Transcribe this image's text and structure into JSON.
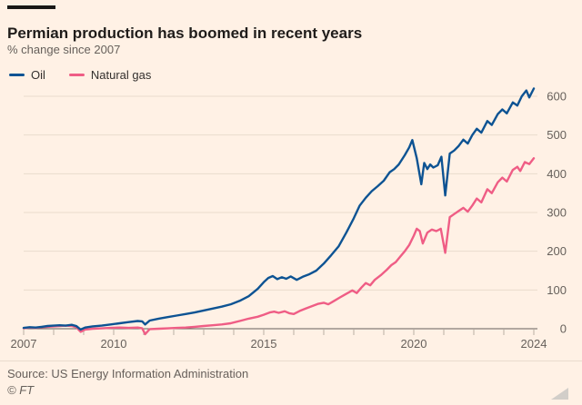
{
  "header": {
    "title": "Permian production has boomed in recent years",
    "subtitle": "% change since 2007"
  },
  "legend": [
    {
      "label": "Oil",
      "color": "#0d5393"
    },
    {
      "label": "Natural gas",
      "color": "#ef5d85"
    }
  ],
  "footer": {
    "source": "Source: US Energy Information Administration",
    "copyright": "© FT"
  },
  "colors": {
    "background": "#fff1e5",
    "grid": "#e9dccd",
    "zero_axis": "#66605b",
    "tick": "#b9aea3",
    "axis_label": "#66605b",
    "oil": "#0d5393",
    "natural_gas": "#ef5d85"
  },
  "chart_data": {
    "type": "line",
    "title": "Permian production has boomed in recent years",
    "ylabel": "% change since 2007",
    "grid": true,
    "legend_position": "top-left",
    "x_axis": {
      "min": 2007,
      "max": 2024.1,
      "tick_step_years": 1,
      "labeled_years": [
        2007,
        2010,
        2015,
        2020,
        2024
      ]
    },
    "y_axis": {
      "side": "right",
      "gridlines": [
        0,
        100,
        200,
        300,
        400,
        500,
        600
      ],
      "ylim": [
        -20,
        640
      ]
    },
    "series": [
      {
        "name": "Oil",
        "color": "#0d5393",
        "points": [
          [
            2007.0,
            2
          ],
          [
            2007.2,
            4
          ],
          [
            2007.4,
            3
          ],
          [
            2007.6,
            5
          ],
          [
            2007.8,
            7
          ],
          [
            2008.0,
            8
          ],
          [
            2008.2,
            9
          ],
          [
            2008.4,
            8
          ],
          [
            2008.6,
            10
          ],
          [
            2008.75,
            7
          ],
          [
            2008.9,
            -2
          ],
          [
            2009.05,
            3
          ],
          [
            2009.3,
            6
          ],
          [
            2009.6,
            8
          ],
          [
            2009.9,
            11
          ],
          [
            2010.2,
            14
          ],
          [
            2010.5,
            17
          ],
          [
            2010.8,
            20
          ],
          [
            2010.95,
            19
          ],
          [
            2011.05,
            11
          ],
          [
            2011.2,
            21
          ],
          [
            2011.5,
            26
          ],
          [
            2011.8,
            30
          ],
          [
            2012.1,
            34
          ],
          [
            2012.4,
            38
          ],
          [
            2012.7,
            42
          ],
          [
            2013.0,
            47
          ],
          [
            2013.3,
            52
          ],
          [
            2013.6,
            57
          ],
          [
            2013.9,
            63
          ],
          [
            2014.2,
            72
          ],
          [
            2014.5,
            84
          ],
          [
            2014.8,
            103
          ],
          [
            2015.0,
            120
          ],
          [
            2015.15,
            131
          ],
          [
            2015.3,
            136
          ],
          [
            2015.45,
            128
          ],
          [
            2015.6,
            133
          ],
          [
            2015.75,
            129
          ],
          [
            2015.9,
            135
          ],
          [
            2016.1,
            126
          ],
          [
            2016.3,
            134
          ],
          [
            2016.5,
            140
          ],
          [
            2016.75,
            150
          ],
          [
            2017.0,
            168
          ],
          [
            2017.25,
            190
          ],
          [
            2017.5,
            213
          ],
          [
            2017.75,
            248
          ],
          [
            2018.0,
            285
          ],
          [
            2018.2,
            318
          ],
          [
            2018.4,
            338
          ],
          [
            2018.6,
            355
          ],
          [
            2018.8,
            368
          ],
          [
            2019.0,
            382
          ],
          [
            2019.2,
            404
          ],
          [
            2019.35,
            412
          ],
          [
            2019.5,
            424
          ],
          [
            2019.7,
            448
          ],
          [
            2019.85,
            468
          ],
          [
            2019.95,
            487
          ],
          [
            2020.1,
            440
          ],
          [
            2020.25,
            373
          ],
          [
            2020.35,
            428
          ],
          [
            2020.45,
            412
          ],
          [
            2020.55,
            424
          ],
          [
            2020.65,
            416
          ],
          [
            2020.8,
            422
          ],
          [
            2020.92,
            444
          ],
          [
            2021.05,
            344
          ],
          [
            2021.2,
            452
          ],
          [
            2021.35,
            460
          ],
          [
            2021.5,
            472
          ],
          [
            2021.65,
            488
          ],
          [
            2021.8,
            478
          ],
          [
            2021.95,
            500
          ],
          [
            2022.1,
            516
          ],
          [
            2022.25,
            506
          ],
          [
            2022.45,
            536
          ],
          [
            2022.6,
            526
          ],
          [
            2022.8,
            554
          ],
          [
            2022.95,
            566
          ],
          [
            2023.1,
            556
          ],
          [
            2023.3,
            584
          ],
          [
            2023.45,
            576
          ],
          [
            2023.6,
            600
          ],
          [
            2023.75,
            615
          ],
          [
            2023.85,
            597
          ],
          [
            2024.0,
            620
          ]
        ]
      },
      {
        "name": "Natural gas",
        "color": "#ef5d85",
        "points": [
          [
            2007.0,
            1
          ],
          [
            2007.2,
            3
          ],
          [
            2007.4,
            2
          ],
          [
            2007.6,
            4
          ],
          [
            2007.8,
            5
          ],
          [
            2008.0,
            6
          ],
          [
            2008.2,
            7
          ],
          [
            2008.4,
            8
          ],
          [
            2008.6,
            7
          ],
          [
            2008.75,
            4
          ],
          [
            2008.9,
            -8
          ],
          [
            2009.05,
            -2
          ],
          [
            2009.3,
            0
          ],
          [
            2009.6,
            1
          ],
          [
            2009.9,
            2
          ],
          [
            2010.2,
            3
          ],
          [
            2010.5,
            2
          ],
          [
            2010.8,
            3
          ],
          [
            2010.95,
            1
          ],
          [
            2011.05,
            -14
          ],
          [
            2011.2,
            -1
          ],
          [
            2011.5,
            0
          ],
          [
            2011.8,
            1
          ],
          [
            2012.1,
            2
          ],
          [
            2012.4,
            3
          ],
          [
            2012.7,
            5
          ],
          [
            2013.0,
            7
          ],
          [
            2013.3,
            9
          ],
          [
            2013.6,
            11
          ],
          [
            2013.9,
            14
          ],
          [
            2014.2,
            20
          ],
          [
            2014.5,
            26
          ],
          [
            2014.8,
            31
          ],
          [
            2015.0,
            36
          ],
          [
            2015.2,
            42
          ],
          [
            2015.35,
            44
          ],
          [
            2015.5,
            41
          ],
          [
            2015.7,
            45
          ],
          [
            2015.85,
            40
          ],
          [
            2016.0,
            38
          ],
          [
            2016.2,
            46
          ],
          [
            2016.4,
            52
          ],
          [
            2016.6,
            58
          ],
          [
            2016.8,
            64
          ],
          [
            2017.0,
            67
          ],
          [
            2017.15,
            63
          ],
          [
            2017.35,
            72
          ],
          [
            2017.55,
            81
          ],
          [
            2017.75,
            90
          ],
          [
            2017.95,
            99
          ],
          [
            2018.1,
            92
          ],
          [
            2018.25,
            106
          ],
          [
            2018.4,
            118
          ],
          [
            2018.55,
            112
          ],
          [
            2018.7,
            126
          ],
          [
            2018.9,
            138
          ],
          [
            2019.1,
            152
          ],
          [
            2019.25,
            164
          ],
          [
            2019.4,
            172
          ],
          [
            2019.55,
            186
          ],
          [
            2019.7,
            200
          ],
          [
            2019.85,
            216
          ],
          [
            2020.0,
            240
          ],
          [
            2020.1,
            258
          ],
          [
            2020.2,
            252
          ],
          [
            2020.3,
            220
          ],
          [
            2020.45,
            248
          ],
          [
            2020.6,
            256
          ],
          [
            2020.75,
            252
          ],
          [
            2020.9,
            258
          ],
          [
            2021.05,
            196
          ],
          [
            2021.2,
            288
          ],
          [
            2021.35,
            296
          ],
          [
            2021.5,
            304
          ],
          [
            2021.65,
            312
          ],
          [
            2021.8,
            302
          ],
          [
            2021.95,
            318
          ],
          [
            2022.1,
            336
          ],
          [
            2022.25,
            326
          ],
          [
            2022.45,
            360
          ],
          [
            2022.6,
            350
          ],
          [
            2022.8,
            378
          ],
          [
            2022.95,
            390
          ],
          [
            2023.1,
            380
          ],
          [
            2023.3,
            410
          ],
          [
            2023.45,
            418
          ],
          [
            2023.55,
            407
          ],
          [
            2023.7,
            430
          ],
          [
            2023.85,
            425
          ],
          [
            2024.0,
            440
          ]
        ]
      }
    ]
  }
}
